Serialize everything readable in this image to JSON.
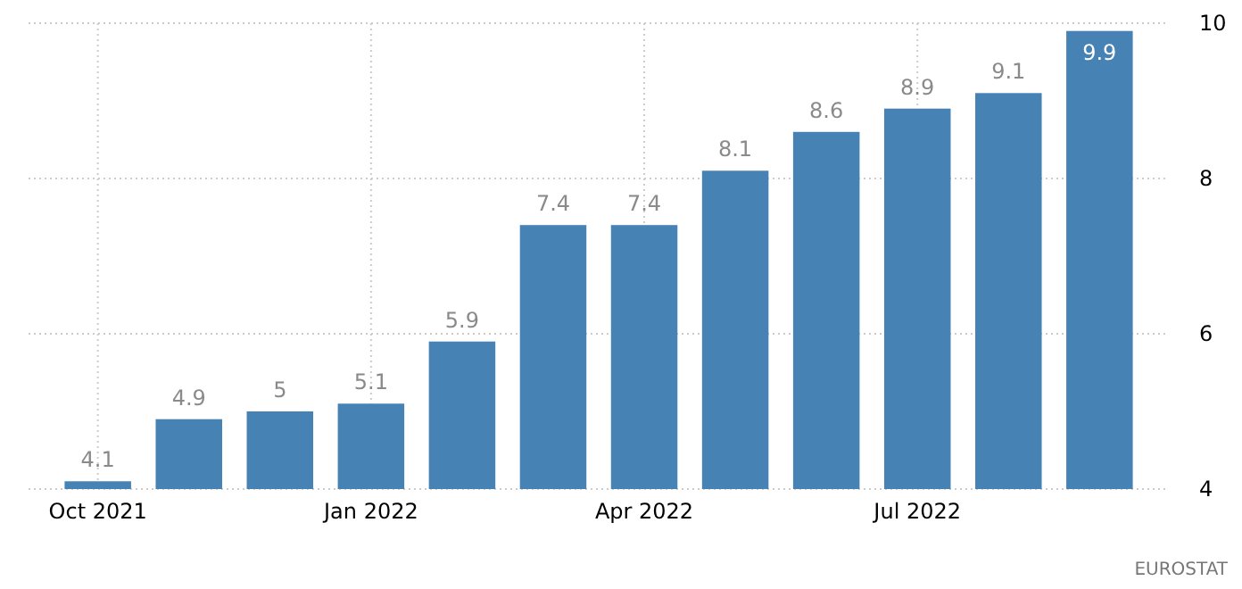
{
  "chart_data": {
    "type": "bar",
    "categories": [
      "Oct 2021",
      null,
      null,
      "Jan 2022",
      null,
      null,
      "Apr 2022",
      null,
      null,
      "Jul 2022",
      null,
      null
    ],
    "values": [
      4.1,
      4.9,
      5,
      5.1,
      5.9,
      7.4,
      7.4,
      8.1,
      8.6,
      8.9,
      9.1,
      9.9
    ],
    "color": "#4682b4",
    "ylim": [
      4,
      10
    ],
    "yticks": [
      4,
      6,
      8,
      10
    ],
    "grid": true,
    "data_labels": true,
    "annotations": [
      "EUROSTAT"
    ]
  }
}
